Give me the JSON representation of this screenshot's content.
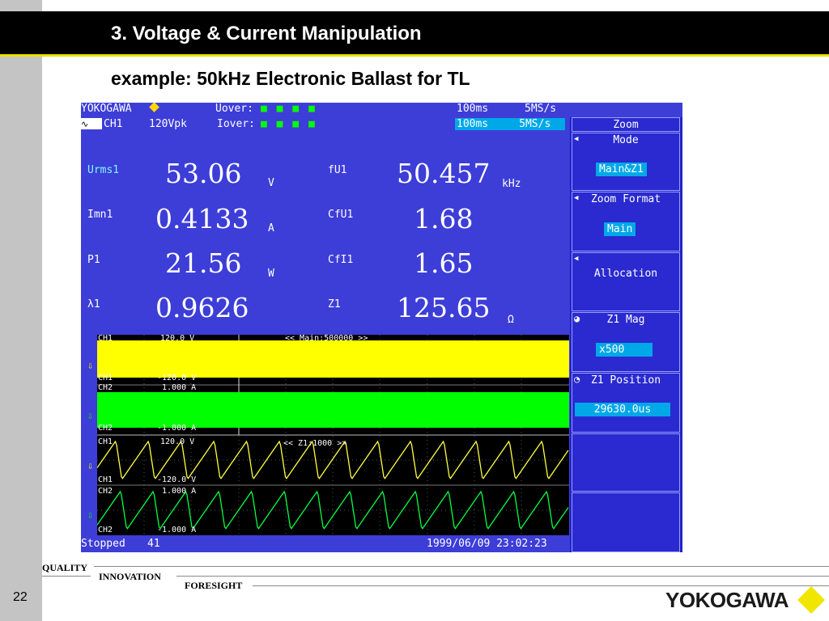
{
  "slide": {
    "title": "3. Voltage & Current Manipulation",
    "subtitle": "example: 50kHz Electronic Ballast for TL",
    "page_number": "22",
    "brand": "YOKOGAWA",
    "footer": {
      "quality": "QUALITY",
      "innovation": "INNOVATION",
      "foresight": "FORESIGHT"
    }
  },
  "scope": {
    "brand": "YOKOGAWA",
    "header": {
      "ch": "CH1",
      "range": "120Vpk",
      "uover": "Uover:",
      "iover": "Iover:",
      "time1": "100ms",
      "rate1": "5MS/s",
      "time2": "100ms",
      "rate2": "5MS/s"
    },
    "measurements": {
      "urms_label": "Urms1",
      "urms_value": "53.06",
      "urms_unit": "V",
      "imn_label": "Imn1",
      "imn_value": "0.4133",
      "imn_unit": "A",
      "p_label": "P1",
      "p_value": "21.56",
      "p_unit": "W",
      "lambda_label": "λ1",
      "lambda_value": "0.9626",
      "fu_label": "fU1",
      "fu_value": "50.457",
      "fu_unit": "kHz",
      "cfu_label": "CfU1",
      "cfu_value": "1.68",
      "cfi_label": "CfI1",
      "cfi_value": "1.65",
      "z_label": "Z1",
      "z_value": "125.65",
      "z_unit": "Ω"
    },
    "waveforms": {
      "top_ch1_label": "CH1",
      "top_ch1_max": "120.0 V",
      "top_ch1_min": "-120.0 V",
      "top_zoom": "<< Main:500000 >>",
      "top_ch2_label": "CH2",
      "top_ch2_max": "1.000 A",
      "top_ch2_min": "-1.000 A",
      "bot_ch1_label": "CH1",
      "bot_ch1_max": "120.0 V",
      "bot_ch1_min": "-120.0 V",
      "bot_zoom": "<< Z1:1000 >>",
      "bot_ch2_label": "CH2",
      "bot_ch2_max": "1.000 A",
      "bot_ch2_min": "-1.000 A"
    },
    "status": {
      "state": "Stopped",
      "count": "41",
      "datetime": "1999/06/09 23:02:23"
    },
    "softkeys": {
      "zoom": "Zoom",
      "mode": "Mode",
      "mode_value": "Main&Z1",
      "zoom_format": "Zoom Format",
      "zoom_format_value": "Main",
      "allocation": "Allocation",
      "z1_mag": "Z1 Mag",
      "z1_mag_value": "x500",
      "z1_position": "Z1 Position",
      "z1_position_value": "29630.0us"
    }
  },
  "colors": {
    "screen_bg": "#3d3dd8",
    "ch1": "#ffff00",
    "ch2": "#00ff00",
    "highlight": "#00a8e8"
  }
}
